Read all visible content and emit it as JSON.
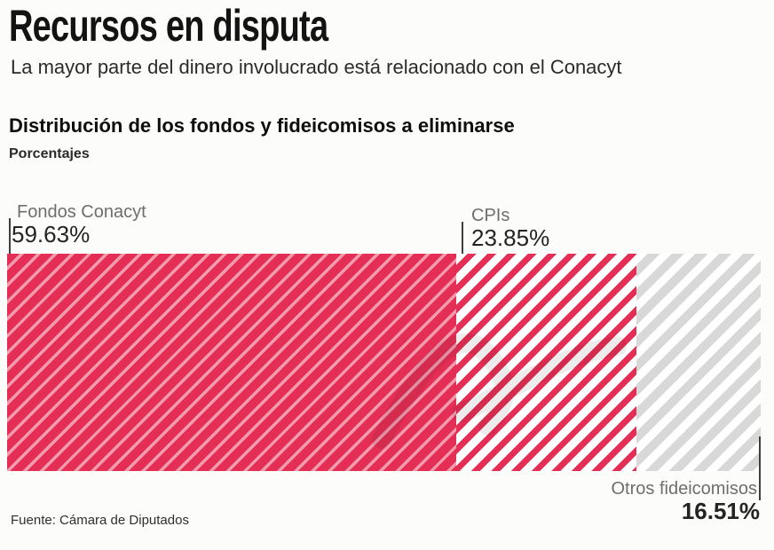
{
  "page": {
    "title": "Recursos en disputa",
    "subtitle": "La mayor parte del dinero involucrado está relacionado con el Conacyt"
  },
  "chart": {
    "title": "Distribución de los  fondos y fideicomisos a eliminarse",
    "unit_label": "Porcentajes",
    "source": "Fuente: Cámara de Diputados"
  },
  "chart_data": {
    "type": "bar",
    "variant": "stacked-horizontal-100-percent",
    "title": "Distribución de los  fondos y fideicomisos a eliminarse",
    "unit": "Porcentajes",
    "categories": [
      "Fondos Conacyt",
      "CPIs",
      "Otros fideicomisos"
    ],
    "values": [
      59.63,
      23.85,
      16.51
    ],
    "value_labels": [
      "59.63%",
      "23.85%",
      "16.51%"
    ],
    "xlim": [
      0,
      100
    ],
    "grid": false,
    "legend_position": "callout-labels (two above bar, one below right)",
    "patterns": [
      "light diagonal stripes on solid red",
      "red diagonal stripes on white",
      "gray diagonal stripes on white"
    ],
    "colors": {
      "accent_red": "#e52e55",
      "light_red_stripe": "#f19bad",
      "gray_stripe": "#d8d8d8",
      "label_gray": "#6e6e6e",
      "value_dark": "#242424",
      "background": "#fcfcfa"
    },
    "source": "Fuente: Cámara de Diputados"
  },
  "segments": [
    {
      "label": "Fondos Conacyt",
      "value": 59.63,
      "value_label": "59.63%"
    },
    {
      "label": "CPIs",
      "value": 23.85,
      "value_label": "23.85%"
    },
    {
      "label": "Otros fideicomisos",
      "value": 16.51,
      "value_label": "16.51%"
    }
  ]
}
